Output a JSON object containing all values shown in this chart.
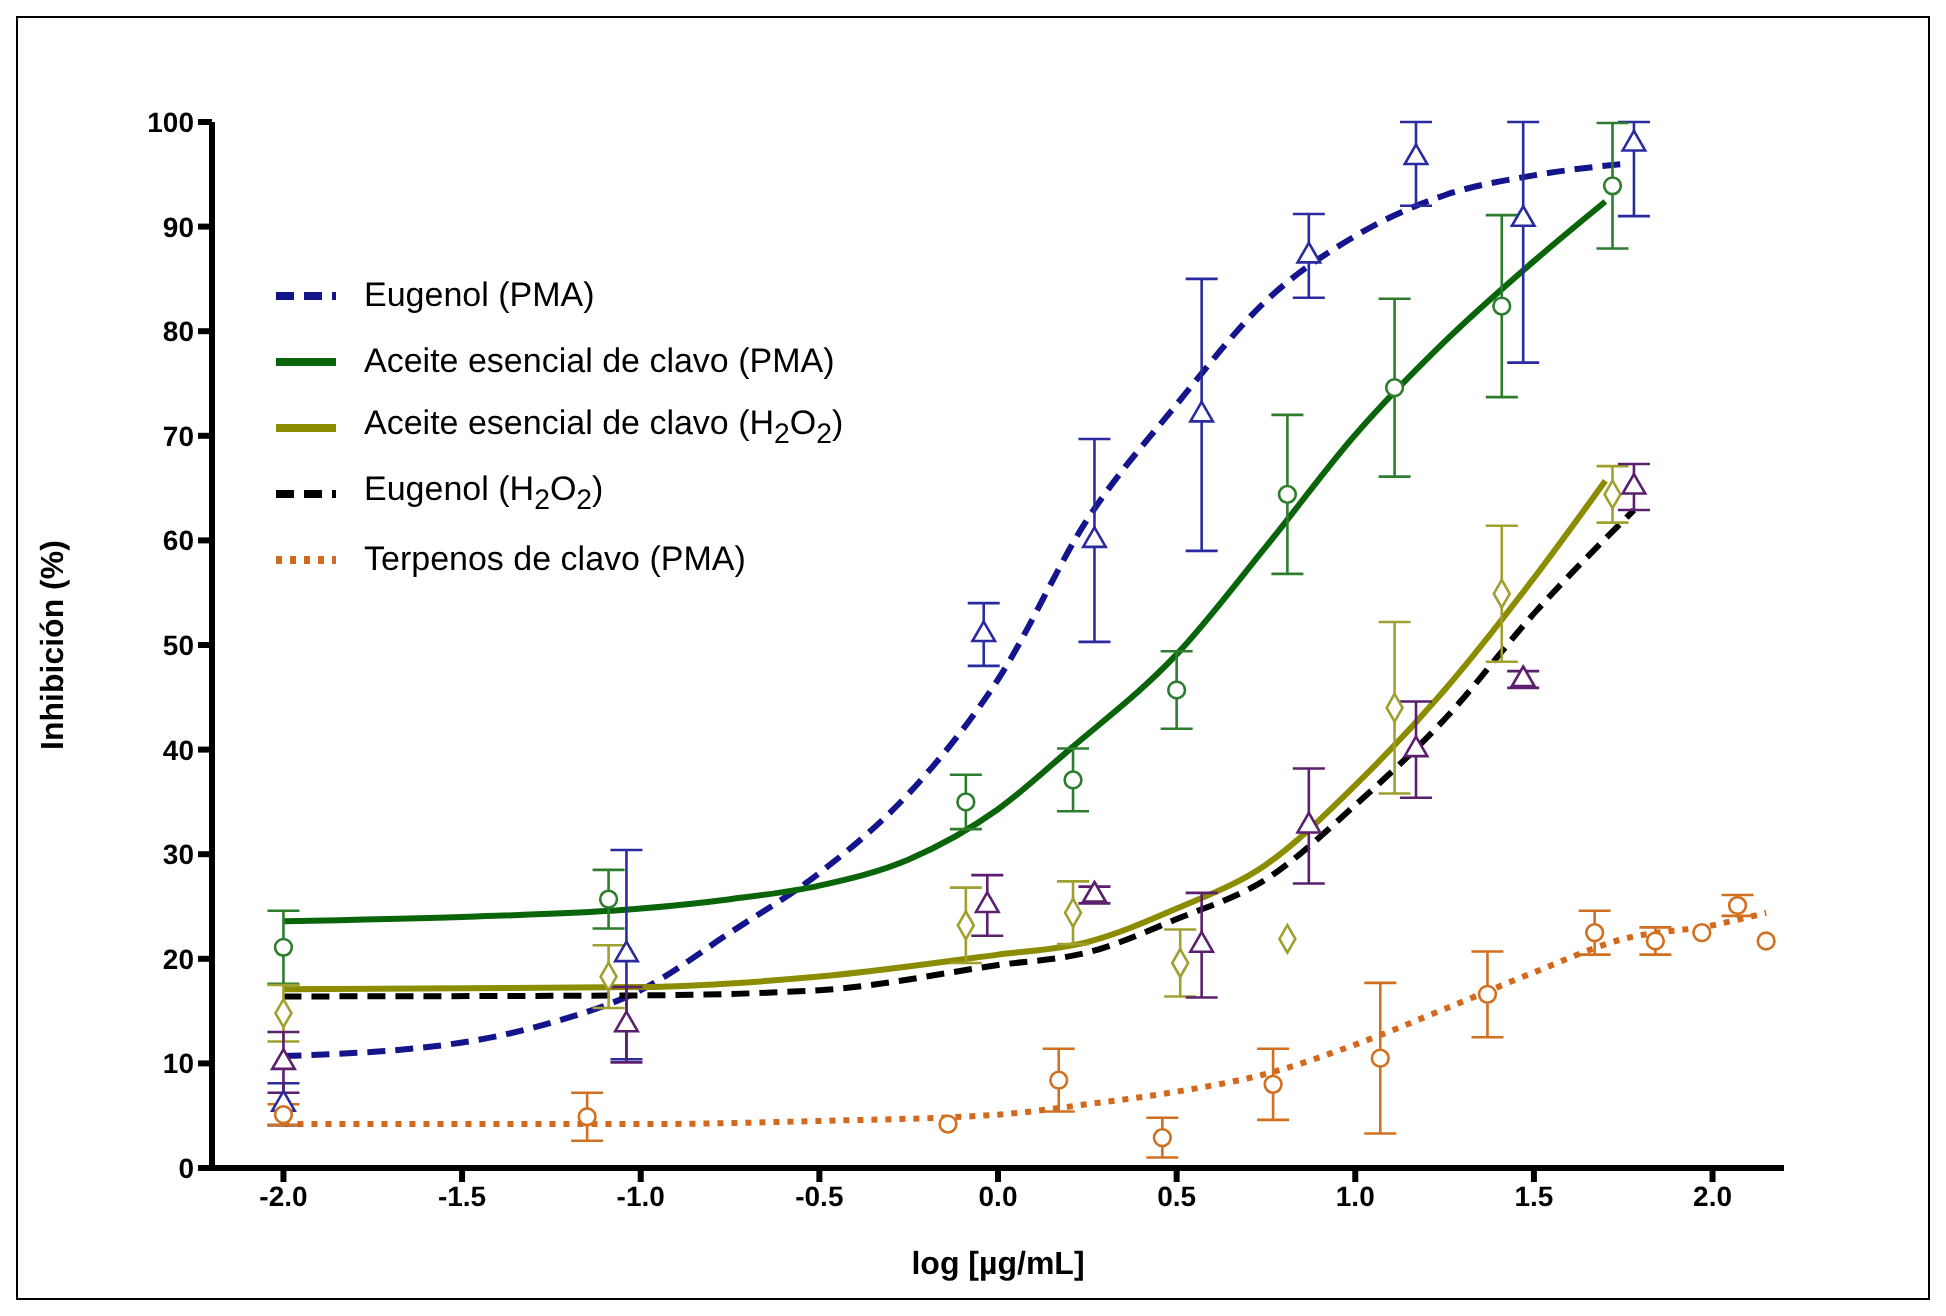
{
  "chart_data": {
    "type": "line",
    "xlabel": "log [µg/mL]",
    "ylabel": "Inhibición (%)",
    "xlim": [
      -2.2,
      2.2
    ],
    "xticks": [
      {
        "value": -2,
        "label": "-2.0"
      },
      {
        "value": -1.5,
        "label": "-1.5"
      },
      {
        "value": -1,
        "label": "-1.0"
      },
      {
        "value": -0.5,
        "label": "-0.5"
      },
      {
        "value": 0,
        "label": "0.0"
      },
      {
        "value": 0.5,
        "label": "0.5"
      },
      {
        "value": 1,
        "label": "1.0"
      },
      {
        "value": 1.5,
        "label": "1.5"
      },
      {
        "value": 2,
        "label": "2.0"
      }
    ],
    "ylim": [
      0,
      100
    ],
    "yticks": [
      0,
      10,
      20,
      30,
      40,
      50,
      60,
      70,
      80,
      90,
      100
    ],
    "legend": "top left",
    "series": [
      {
        "name": "Eugenol (PMA)",
        "color": "#14148c",
        "line_style": "dashed",
        "x": [
          -2,
          -1.5,
          -1.25,
          -1,
          -0.75,
          -0.5,
          -0.25,
          0,
          0.25,
          0.5,
          0.75,
          1,
          1.25,
          1.5,
          1.75
        ],
        "values": [
          10.7,
          12,
          13.9,
          17,
          22.5,
          28.2,
          35.8,
          46.7,
          62,
          73,
          82.9,
          89.1,
          93,
          94.9,
          96
        ]
      },
      {
        "name": "Aceite esencial de clavo (PMA)",
        "color": "#0a640a",
        "line_style": "solid",
        "x": [
          -2,
          -1.5,
          -1,
          -0.75,
          -0.5,
          -0.25,
          0,
          0.2,
          0.5,
          0.75,
          1,
          1.25,
          1.5,
          1.7
        ],
        "values": [
          23.6,
          24,
          24.8,
          25.7,
          27,
          29.5,
          34.3,
          40,
          49.1,
          59.4,
          70.1,
          79,
          86.7,
          92.4
        ]
      },
      {
        "name": "Aceite esencial de clavo (H$_{2}$O$_{2}$)",
        "color": "#8c8c00",
        "line_style": "solid",
        "x": [
          -2,
          -1,
          -0.5,
          0,
          0.25,
          0.5,
          0.75,
          1,
          1.25,
          1.5,
          1.7
        ],
        "values": [
          17.1,
          17.3,
          18.3,
          20.4,
          21.6,
          24.8,
          29,
          36.6,
          45.7,
          56.4,
          65.7
        ]
      },
      {
        "name": "Eugenol (H$_{2}$O$_{2}$)",
        "color": "#000000",
        "line_style": "dashed",
        "x": [
          -2,
          -1,
          -0.5,
          0,
          0.25,
          0.5,
          0.75,
          1,
          1.25,
          1.5,
          1.78
        ],
        "values": [
          16.4,
          16.5,
          17,
          19.4,
          20.6,
          23.8,
          27.6,
          34.7,
          42.9,
          53,
          62.9
        ]
      },
      {
        "name": "Terpenos de clavo (PMA)",
        "color": "#d2691e",
        "line_style": "dotted",
        "x": [
          -2,
          -1,
          -0.5,
          0,
          0.25,
          0.5,
          0.75,
          1,
          1.25,
          1.5,
          1.75,
          2,
          2.15
        ],
        "values": [
          4.2,
          4.2,
          4.5,
          5.1,
          6.1,
          7.3,
          9,
          11.8,
          15.2,
          18.7,
          21.9,
          23.2,
          24.4
        ]
      },
      {
        "type": "scatter",
        "color": "#2b2ba0",
        "marker": "triangle",
        "x": [
          -2,
          -1.04,
          -0.04,
          0.27,
          0.57,
          0.87,
          1.17,
          1.47,
          1.78
        ],
        "values": [
          6.1,
          20.4,
          51,
          60,
          72,
          87.2,
          96.6,
          90.7,
          97.9
        ],
        "errors": [
          2,
          10,
          3,
          9.7,
          13,
          4,
          [
            92,
            100
          ],
          [
            77,
            100
          ],
          [
            91,
            100
          ]
        ]
      },
      {
        "type": "scatter",
        "color": "#2e7d2e",
        "marker": "circle",
        "x": [
          -2,
          -1.09,
          -0.09,
          0.21,
          0.5,
          0.81,
          1.11,
          1.41,
          1.72
        ],
        "values": [
          21.1,
          25.7,
          35,
          37.1,
          45.7,
          64.4,
          74.6,
          82.4,
          93.9
        ],
        "errors": [
          3.5,
          2.8,
          2.6,
          3,
          3.7,
          7.6,
          8.5,
          8.7,
          6
        ]
      },
      {
        "type": "scatter",
        "color": "#a0a030",
        "marker": "diamond",
        "x": [
          -2,
          -1.09,
          -0.09,
          0.21,
          0.51,
          0.81,
          1.11,
          1.41,
          1.72
        ],
        "values": [
          14.8,
          18.3,
          23.2,
          24.4,
          19.6,
          21.9,
          44,
          54.9,
          64.4
        ],
        "errors": [
          2.7,
          3,
          3.6,
          3,
          3.2,
          null,
          8.2,
          6.5,
          2.7
        ]
      },
      {
        "type": "scatter",
        "color": "#5c1f6e",
        "marker": "triangle",
        "x": [
          -2,
          -1.04,
          -0.03,
          0.27,
          0.57,
          0.87,
          1.17,
          1.47,
          1.78
        ],
        "values": [
          10.1,
          13.7,
          25.1,
          26.1,
          21.3,
          32.7,
          40,
          46.7,
          65.1
        ],
        "errors": [
          2.9,
          3.6,
          2.9,
          0.8,
          5,
          5.5,
          4.6,
          0.8,
          2.2
        ]
      },
      {
        "type": "scatter",
        "color": "#d07020",
        "marker": "circle",
        "x": [
          -2,
          -1.15,
          -0.14,
          0.17,
          0.46,
          0.77,
          1.07,
          1.37,
          1.67,
          1.84,
          1.97,
          2.07,
          2.15
        ],
        "values": [
          5.1,
          4.9,
          4.2,
          8.4,
          2.9,
          8,
          10.5,
          16.6,
          22.5,
          21.7,
          22.5,
          25.1,
          21.7
        ],
        "errors": [
          1,
          2.3,
          null,
          3,
          1.9,
          3.4,
          7.2,
          4.1,
          2.1,
          1.3,
          null,
          1,
          null
        ]
      }
    ]
  }
}
